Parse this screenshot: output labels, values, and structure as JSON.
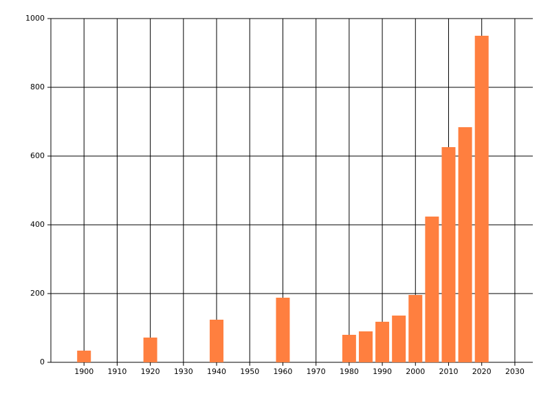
{
  "chart_data": {
    "type": "bar",
    "x": [
      1900,
      1920,
      1940,
      1960,
      1980,
      1985,
      1990,
      1995,
      2000,
      2005,
      2010,
      2015,
      2020
    ],
    "values": [
      34,
      72,
      124,
      188,
      80,
      90,
      118,
      136,
      196,
      424,
      626,
      684,
      950
    ],
    "color": "#ff7f3f",
    "xlim": [
      1890,
      2035
    ],
    "xticks": [
      1900,
      1910,
      1920,
      1930,
      1940,
      1950,
      1960,
      1970,
      1980,
      1990,
      2000,
      2010,
      2020,
      2030
    ],
    "ylim": [
      0,
      1000
    ],
    "yticks": [
      0,
      200,
      400,
      600,
      800,
      1000
    ],
    "grid": true
  }
}
